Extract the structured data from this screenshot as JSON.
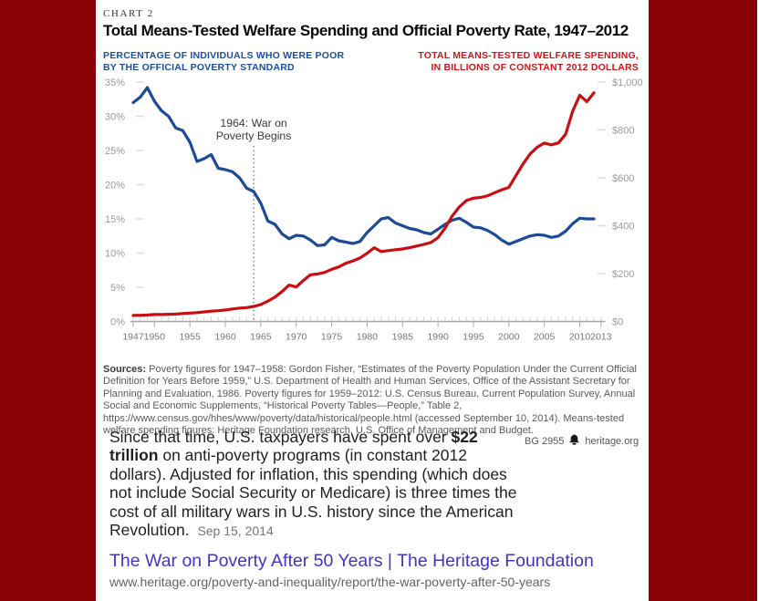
{
  "colors": {
    "page_background": "#8a0304",
    "panel_background": "#ffffff",
    "poverty_line_blue": "#1b4a97",
    "spending_line_red": "#c90d10",
    "left_header_blue": "#1b4e9b",
    "right_header_red": "#d11517",
    "link_blue": "#4134c8",
    "url_gray": "#5f6368"
  },
  "chart": {
    "kicker": "CHART 2",
    "title": "Total Means-Tested Welfare Spending and Official Poverty Rate, 1947–2012",
    "left_axis_header_line1": "PERCENTAGE OF INDIVIDUALS WHO WERE POOR",
    "left_axis_header_line2": "BY THE OFFICIAL POVERTY STANDARD",
    "right_axis_header_line1": "TOTAL MEANS-TESTED WELFARE SPENDING,",
    "right_axis_header_line2": "IN BILLIONS OF CONSTANT 2012 DOLLARS"
  },
  "chart_data": {
    "type": "line",
    "title": "Total Means-Tested Welfare Spending and Official Poverty Rate, 1947–2012",
    "grid": false,
    "x_range": [
      1947,
      2013
    ],
    "x_tick_labels": [
      1947,
      1950,
      1955,
      1960,
      1965,
      1970,
      1975,
      1980,
      1985,
      1990,
      1995,
      2000,
      2005,
      2010,
      2013
    ],
    "x": [
      1947,
      1948,
      1949,
      1950,
      1951,
      1952,
      1953,
      1954,
      1955,
      1956,
      1957,
      1958,
      1959,
      1960,
      1961,
      1962,
      1963,
      1964,
      1965,
      1966,
      1967,
      1968,
      1969,
      1970,
      1971,
      1972,
      1973,
      1974,
      1975,
      1976,
      1977,
      1978,
      1979,
      1980,
      1981,
      1982,
      1983,
      1984,
      1985,
      1986,
      1987,
      1988,
      1989,
      1990,
      1991,
      1992,
      1993,
      1994,
      1995,
      1996,
      1997,
      1998,
      1999,
      2000,
      2001,
      2002,
      2003,
      2004,
      2005,
      2006,
      2007,
      2008,
      2009,
      2010,
      2011,
      2012
    ],
    "left_axis": {
      "label": "Percentage of individuals who were poor by the official poverty standard",
      "range": [
        0,
        35
      ],
      "tick_values": [
        0,
        5,
        10,
        15,
        20,
        25,
        30,
        35
      ],
      "tick_labels": [
        "0%",
        "5%",
        "10%",
        "15%",
        "20%",
        "25%",
        "30%",
        "35%"
      ]
    },
    "right_axis": {
      "label": "Total means-tested welfare spending, in billions of constant 2012 dollars",
      "range": [
        0,
        1000
      ],
      "tick_values": [
        0,
        200,
        400,
        600,
        800,
        1000
      ],
      "tick_labels": [
        "$0",
        "$200",
        "$400",
        "$600",
        "$800",
        "$1,000"
      ]
    },
    "annotation": {
      "year": 1964,
      "line1": "1964: War on",
      "line2": "Poverty Begins"
    },
    "series": [
      {
        "name": "Official poverty rate (%)",
        "key": "poverty-rate-line",
        "axis": "left",
        "color": "#1b4a97",
        "values": [
          32.0,
          32.8,
          34.2,
          32.2,
          30.8,
          30.0,
          28.3,
          27.9,
          26.2,
          23.4,
          23.8,
          24.4,
          22.4,
          22.2,
          21.9,
          21.0,
          19.5,
          19.0,
          17.3,
          14.7,
          14.2,
          12.8,
          12.1,
          12.6,
          12.5,
          11.9,
          11.1,
          11.2,
          12.3,
          11.8,
          11.6,
          11.4,
          11.7,
          13.0,
          14.0,
          15.0,
          15.2,
          14.4,
          14.0,
          13.6,
          13.4,
          13.0,
          12.8,
          13.5,
          14.2,
          14.8,
          15.1,
          14.5,
          13.8,
          13.7,
          13.3,
          12.7,
          11.9,
          11.3,
          11.7,
          12.1,
          12.5,
          12.7,
          12.6,
          12.3,
          12.5,
          13.2,
          14.3,
          15.1,
          15.0,
          15.0
        ]
      },
      {
        "name": "Means-tested welfare spending ($B, constant 2012)",
        "key": "welfare-spending-line",
        "axis": "right",
        "color": "#c90d10",
        "values": [
          25,
          26,
          27,
          29,
          29,
          30,
          31,
          33,
          35,
          37,
          40,
          43,
          45,
          48,
          52,
          56,
          58,
          63,
          71,
          85,
          102,
          125,
          152,
          144,
          171,
          195,
          198,
          205,
          218,
          228,
          243,
          253,
          265,
          285,
          308,
          292,
          296,
          300,
          303,
          308,
          315,
          322,
          330,
          350,
          390,
          440,
          478,
          505,
          515,
          518,
          525,
          538,
          550,
          560,
          610,
          658,
          700,
          728,
          745,
          738,
          746,
          782,
          878,
          945,
          918,
          955
        ]
      }
    ]
  },
  "sources": {
    "label": "Sources:",
    "text": "Poverty figures for 1947–1958: Gordon Fisher, “Estimates of the Poverty Population Under the Current Official Definition for Years Before 1959,” U.S. Department of Health and Human Services, Office of the Assistant Secretary for Planning and Evaluation, 1986. Poverty figures for 1959–2012: U.S. Census Bureau, Current Population Survey, Annual Social and Economic Supplements, “Historical Poverty Tables—People,” Table 2, https://www.census.gov/hhes/www/poverty/data/historical/people.html (accessed September 10, 2014). Means-tested welfare spending figures: Heritage Foundation research, U.S. Office of Management and Budget."
  },
  "snippet": {
    "text_start": "Since that time, U.S. taxpayers have spent over ",
    "bold_text": "$22 trillion",
    "text_end": " on anti-poverty programs (in constant 2012 dollars). Adjusted for inflation, this spending (which does not include Social Security or Medicare) is three times the cost of all military wars in U.S. history since the American Revolution.",
    "date": "Sep 15, 2014"
  },
  "attribution": {
    "report_id": "BG 2955",
    "site": "heritage.org"
  },
  "result": {
    "title": "The War on Poverty After 50 Years | The Heritage Foundation",
    "url": "www.heritage.org/poverty-and-inequality/report/the-war-poverty-after-50-years"
  }
}
